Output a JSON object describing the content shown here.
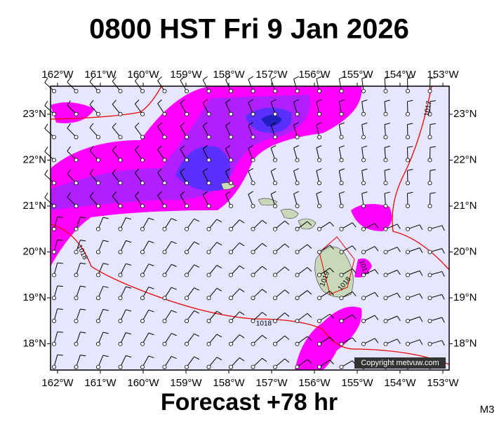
{
  "title": "0800 HST Fri 9 Jan 2026",
  "longitude_labels": [
    "162°W",
    "161°W",
    "160°W",
    "159°W",
    "158°W",
    "157°W",
    "156°W",
    "155°W",
    "154°W",
    "153°W"
  ],
  "latitude_labels": [
    "23°N",
    "22°N",
    "21°N",
    "20°N",
    "19°N",
    "18°N"
  ],
  "isobar_labels": [
    "1017",
    "1018",
    "1018",
    "1019",
    "1018",
    "1017"
  ],
  "copyright": "Copyright metvuw.com",
  "footer": "Forecast +78 hr",
  "model": "M3"
}
